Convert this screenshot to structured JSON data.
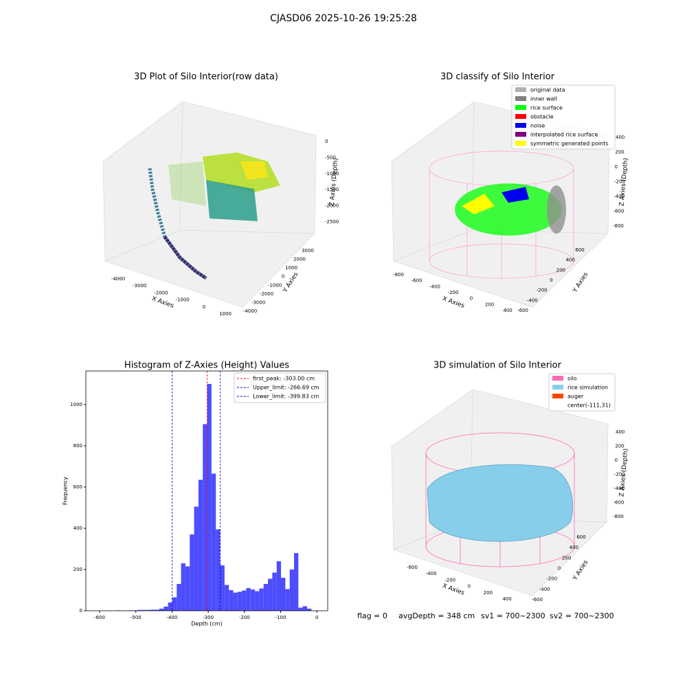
{
  "title": "CJASD06 2025-10-26 19:25:28",
  "footer": [
    "flag = 0",
    "avgDepth = 348 cm",
    "sv1 = 700~2300",
    "sv2 = 700~2300"
  ],
  "chart_data": [
    {
      "type": "scatter3d",
      "title": "3D Plot of Silo Interior(row data)",
      "xlabel": "X Axies",
      "ylabel": "Y Axies",
      "zlabel": "Z Axies (Depth)",
      "xticks": [
        -4000,
        -3000,
        -2000,
        -1000,
        0,
        1000
      ],
      "yticks": [
        -4000,
        -3000,
        -2000,
        -1000,
        0,
        1000,
        2000,
        3000
      ],
      "zticks": [
        0,
        -500,
        -1000,
        -1500,
        -2000,
        -2500
      ]
    },
    {
      "type": "scatter3d",
      "title": "3D classify of Silo Interior",
      "xlabel": "X Axies",
      "ylabel": "Y Axies",
      "zlabel": "Z Axies (Depth)",
      "xticks": [
        -800,
        -600,
        -400,
        -200,
        0,
        200,
        400
      ],
      "yticks": [
        -600,
        -400,
        -200,
        0,
        200,
        400,
        600
      ],
      "zticks": [
        400,
        200,
        0,
        -200,
        -400,
        -600,
        -800
      ],
      "legend": [
        {
          "name": "original data",
          "color": "#b0b0b0"
        },
        {
          "name": "inner wall",
          "color": "#808080"
        },
        {
          "name": "rice surface",
          "color": "#00ff00"
        },
        {
          "name": "obstacle",
          "color": "#ff0000"
        },
        {
          "name": "noise",
          "color": "#0000ee"
        },
        {
          "name": "interpolated rice surface",
          "color": "#800080"
        },
        {
          "name": "symmetric generated points",
          "color": "#ffff00"
        }
      ]
    },
    {
      "type": "histogram",
      "title": "Histogram of Z-Axies (Height) Values",
      "xlabel": "Depth (cm)",
      "ylabel": "Frequency",
      "color": "#4d4dff",
      "bins": [
        -555,
        -543,
        -531,
        -519,
        -507,
        -495,
        -483,
        -471,
        -459,
        -447,
        -435,
        -423,
        -411,
        -399,
        -387,
        -375,
        -363,
        -351,
        -339,
        -327,
        -315,
        -303,
        -291,
        -279,
        -267,
        -255,
        -243,
        -231,
        -219,
        -207,
        -195,
        -183,
        -171,
        -159,
        -147,
        -135,
        -123,
        -111,
        -99,
        -87,
        -75,
        -63,
        -51,
        -39,
        -27,
        -15,
        -3
      ],
      "values": [
        2,
        0,
        1,
        2,
        2,
        4,
        4,
        4,
        5,
        5,
        10,
        20,
        40,
        65,
        130,
        230,
        215,
        370,
        505,
        635,
        905,
        1100,
        665,
        395,
        220,
        125,
        100,
        88,
        92,
        98,
        110,
        103,
        95,
        108,
        130,
        155,
        185,
        240,
        160,
        105,
        200,
        280,
        15,
        22,
        10,
        0
      ],
      "xlim": [
        -638,
        30
      ],
      "ylim": [
        0,
        1163
      ],
      "xticks": [
        -600,
        -500,
        -400,
        -300,
        -200,
        -100,
        0
      ],
      "yticks": [
        0,
        200,
        400,
        600,
        800,
        1000
      ],
      "lines": [
        {
          "label": "first_peak: -303.00 cm",
          "value": -303,
          "color": "#ff0000"
        },
        {
          "label": "Upper_limit: -266.69 cm",
          "value": -266.69,
          "color": "#0000cc"
        },
        {
          "label": "Lower_limit: -399.83 cm",
          "value": -399.83,
          "color": "#0000cc"
        }
      ]
    },
    {
      "type": "surface3d",
      "title": "3D simulation of Silo Interior",
      "xlabel": "X Axies",
      "ylabel": "Y Axies",
      "zlabel": "Z Axies (Depth)",
      "xticks": [
        -600,
        -400,
        -200,
        0,
        200,
        400
      ],
      "yticks": [
        -600,
        -400,
        -200,
        0,
        200,
        400,
        600
      ],
      "zticks": [
        400,
        200,
        0,
        -200,
        -400,
        -600,
        -800
      ],
      "legend": [
        {
          "name": "silo",
          "color": "#ff69b4"
        },
        {
          "name": "rice simulation",
          "color": "#87ceeb"
        },
        {
          "name": "auger",
          "color": "#ff4500"
        },
        {
          "name": "center(-111,31)"
        }
      ]
    }
  ]
}
